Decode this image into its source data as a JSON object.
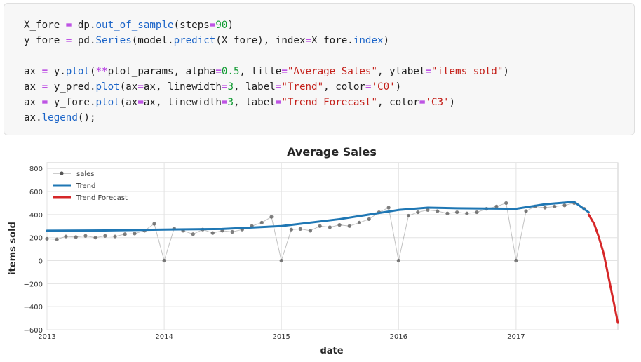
{
  "code_cell": {
    "lines": [
      [
        {
          "t": "X_fore ",
          "c": "var"
        },
        {
          "t": "=",
          "c": "op"
        },
        {
          "t": " dp.",
          "c": "var"
        },
        {
          "t": "out_of_sample",
          "c": "fn"
        },
        {
          "t": "(steps",
          "c": "var"
        },
        {
          "t": "=",
          "c": "op"
        },
        {
          "t": "90",
          "c": "num"
        },
        {
          "t": ")",
          "c": "var"
        }
      ],
      [
        {
          "t": "y_fore ",
          "c": "var"
        },
        {
          "t": "=",
          "c": "op"
        },
        {
          "t": " pd.",
          "c": "var"
        },
        {
          "t": "Series",
          "c": "fn"
        },
        {
          "t": "(model.",
          "c": "var"
        },
        {
          "t": "predict",
          "c": "fn"
        },
        {
          "t": "(X_fore), index",
          "c": "var"
        },
        {
          "t": "=",
          "c": "op"
        },
        {
          "t": "X_fore.",
          "c": "var"
        },
        {
          "t": "index",
          "c": "fn"
        },
        {
          "t": ")",
          "c": "var"
        }
      ],
      [],
      [
        {
          "t": "ax ",
          "c": "var"
        },
        {
          "t": "=",
          "c": "op"
        },
        {
          "t": " y.",
          "c": "var"
        },
        {
          "t": "plot",
          "c": "fn"
        },
        {
          "t": "(",
          "c": "var"
        },
        {
          "t": "**",
          "c": "op"
        },
        {
          "t": "plot_params, alpha",
          "c": "var"
        },
        {
          "t": "=",
          "c": "op"
        },
        {
          "t": "0.5",
          "c": "num"
        },
        {
          "t": ", title",
          "c": "var"
        },
        {
          "t": "=",
          "c": "op"
        },
        {
          "t": "\"Average Sales\"",
          "c": "str"
        },
        {
          "t": ", ylabel",
          "c": "var"
        },
        {
          "t": "=",
          "c": "op"
        },
        {
          "t": "\"items sold\"",
          "c": "str"
        },
        {
          "t": ")",
          "c": "var"
        }
      ],
      [
        {
          "t": "ax ",
          "c": "var"
        },
        {
          "t": "=",
          "c": "op"
        },
        {
          "t": " y_pred.",
          "c": "var"
        },
        {
          "t": "plot",
          "c": "fn"
        },
        {
          "t": "(ax",
          "c": "var"
        },
        {
          "t": "=",
          "c": "op"
        },
        {
          "t": "ax, linewidth",
          "c": "var"
        },
        {
          "t": "=",
          "c": "op"
        },
        {
          "t": "3",
          "c": "num"
        },
        {
          "t": ", label",
          "c": "var"
        },
        {
          "t": "=",
          "c": "op"
        },
        {
          "t": "\"Trend\"",
          "c": "str"
        },
        {
          "t": ", color",
          "c": "var"
        },
        {
          "t": "=",
          "c": "op"
        },
        {
          "t": "'C0'",
          "c": "str"
        },
        {
          "t": ")",
          "c": "var"
        }
      ],
      [
        {
          "t": "ax ",
          "c": "var"
        },
        {
          "t": "=",
          "c": "op"
        },
        {
          "t": " y_fore.",
          "c": "var"
        },
        {
          "t": "plot",
          "c": "fn"
        },
        {
          "t": "(ax",
          "c": "var"
        },
        {
          "t": "=",
          "c": "op"
        },
        {
          "t": "ax, linewidth",
          "c": "var"
        },
        {
          "t": "=",
          "c": "op"
        },
        {
          "t": "3",
          "c": "num"
        },
        {
          "t": ", label",
          "c": "var"
        },
        {
          "t": "=",
          "c": "op"
        },
        {
          "t": "\"Trend Forecast\"",
          "c": "str"
        },
        {
          "t": ", color",
          "c": "var"
        },
        {
          "t": "=",
          "c": "op"
        },
        {
          "t": "'C3'",
          "c": "str"
        },
        {
          "t": ")",
          "c": "var"
        }
      ],
      [
        {
          "t": "ax.",
          "c": "var"
        },
        {
          "t": "legend",
          "c": "fn"
        },
        {
          "t": "();",
          "c": "var"
        }
      ]
    ]
  },
  "syntax_colors": {
    "op": "#ab1fdd",
    "fn": "#1b64c8",
    "num": "#0f9a31",
    "str": "#c4211b",
    "var": "#212121"
  },
  "chart_data": {
    "type": "line",
    "title": "Average Sales",
    "xlabel": "date",
    "ylabel": "items sold",
    "xlim": [
      "2013-01-01",
      "2017-11-14"
    ],
    "ylim": [
      -600,
      850
    ],
    "x_ticks": [
      "2013",
      "2014",
      "2015",
      "2016",
      "2017"
    ],
    "y_ticks": [
      800,
      600,
      400,
      200,
      0,
      -200,
      -400,
      -600
    ],
    "grid": true,
    "legend_position": "top-left",
    "legend": [
      "sales",
      "Trend",
      "Trend Forecast"
    ],
    "series": [
      {
        "name": "sales",
        "style": "points",
        "color": "#555555",
        "x": [
          "2013-01-01",
          "2013-02-01",
          "2013-03-01",
          "2013-04-01",
          "2013-05-01",
          "2013-06-01",
          "2013-07-01",
          "2013-08-01",
          "2013-09-01",
          "2013-10-01",
          "2013-11-01",
          "2013-12-01",
          "2014-01-01",
          "2014-02-01",
          "2014-03-01",
          "2014-04-01",
          "2014-05-01",
          "2014-06-01",
          "2014-07-01",
          "2014-08-01",
          "2014-09-01",
          "2014-10-01",
          "2014-11-01",
          "2014-12-01",
          "2015-01-01",
          "2015-02-01",
          "2015-03-01",
          "2015-04-01",
          "2015-05-01",
          "2015-06-01",
          "2015-07-01",
          "2015-08-01",
          "2015-09-01",
          "2015-10-01",
          "2015-11-01",
          "2015-12-01",
          "2016-01-01",
          "2016-02-01",
          "2016-03-01",
          "2016-04-01",
          "2016-05-01",
          "2016-06-01",
          "2016-07-01",
          "2016-08-01",
          "2016-09-01",
          "2016-10-01",
          "2016-11-01",
          "2016-12-01",
          "2017-01-01",
          "2017-02-01",
          "2017-03-01",
          "2017-04-01",
          "2017-05-01",
          "2017-06-01",
          "2017-07-01",
          "2017-08-01"
        ],
        "values": [
          190,
          185,
          210,
          205,
          215,
          200,
          215,
          210,
          230,
          235,
          260,
          320,
          0,
          280,
          260,
          230,
          270,
          240,
          260,
          250,
          270,
          300,
          330,
          380,
          0,
          270,
          275,
          260,
          300,
          290,
          310,
          300,
          330,
          360,
          420,
          460,
          0,
          390,
          420,
          440,
          430,
          410,
          420,
          410,
          420,
          450,
          470,
          500,
          0,
          430,
          470,
          460,
          470,
          480,
          500,
          450
        ]
      },
      {
        "name": "Trend",
        "style": "line",
        "color": "#1f77b4",
        "x": [
          "2013-01-01",
          "2013-07-01",
          "2014-01-01",
          "2014-07-01",
          "2015-01-01",
          "2015-07-01",
          "2016-01-01",
          "2016-04-01",
          "2016-07-01",
          "2017-01-01",
          "2017-04-01",
          "2017-07-01",
          "2017-08-15"
        ],
        "values": [
          260,
          262,
          270,
          275,
          300,
          360,
          440,
          460,
          455,
          450,
          490,
          510,
          420
        ]
      },
      {
        "name": "Trend Forecast",
        "style": "line",
        "color": "#d62728",
        "x": [
          "2017-08-15",
          "2017-09-01",
          "2017-09-15",
          "2017-10-01",
          "2017-10-15",
          "2017-11-01",
          "2017-11-14"
        ],
        "values": [
          400,
          320,
          210,
          60,
          -130,
          -360,
          -540
        ]
      }
    ]
  }
}
